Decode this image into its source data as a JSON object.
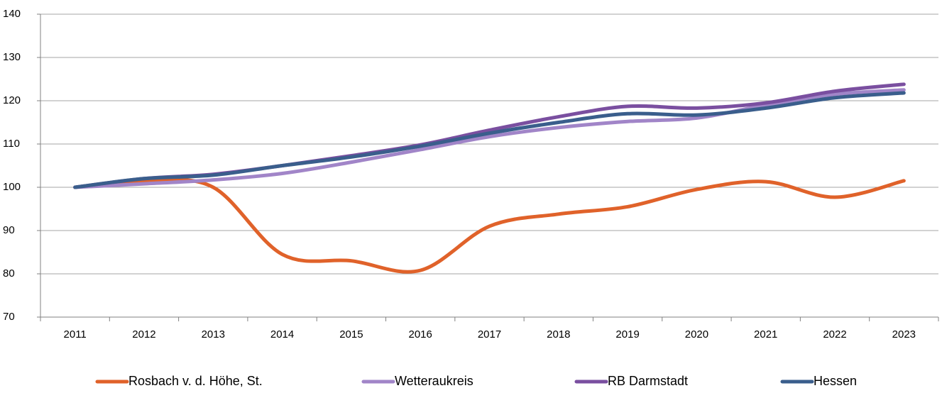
{
  "chart_data": {
    "type": "line",
    "categories": [
      "2011",
      "2012",
      "2013",
      "2014",
      "2015",
      "2016",
      "2017",
      "2018",
      "2019",
      "2020",
      "2021",
      "2022",
      "2023"
    ],
    "series": [
      {
        "name": "Rosbach v. d. Höhe, St.",
        "color": "#e0622a",
        "values": [
          100,
          101.3,
          100,
          84.5,
          83,
          80.8,
          91,
          93.8,
          95.5,
          99.5,
          101.3,
          97.7,
          101.5
        ]
      },
      {
        "name": "Wetteraukreis",
        "color": "#a185c8",
        "values": [
          100,
          100.8,
          101.7,
          103.2,
          105.8,
          108.7,
          111.7,
          113.8,
          115.2,
          116,
          119,
          121.5,
          122.5
        ]
      },
      {
        "name": "RB Darmstadt",
        "color": "#7a4fa0",
        "values": [
          100,
          102,
          103,
          105,
          107.3,
          109.8,
          113.2,
          116.3,
          118.7,
          118.3,
          119.5,
          122.2,
          123.8
        ]
      },
      {
        "name": "Hessen",
        "color": "#3a5e8c",
        "values": [
          100,
          102,
          102.8,
          105,
          107,
          109.5,
          112.5,
          115,
          117,
          116.7,
          118.3,
          120.7,
          121.8
        ]
      }
    ],
    "ylim": [
      70,
      140
    ],
    "yticks": [
      70,
      80,
      90,
      100,
      110,
      120,
      130,
      140
    ],
    "grid": true,
    "legend": "bottom"
  }
}
